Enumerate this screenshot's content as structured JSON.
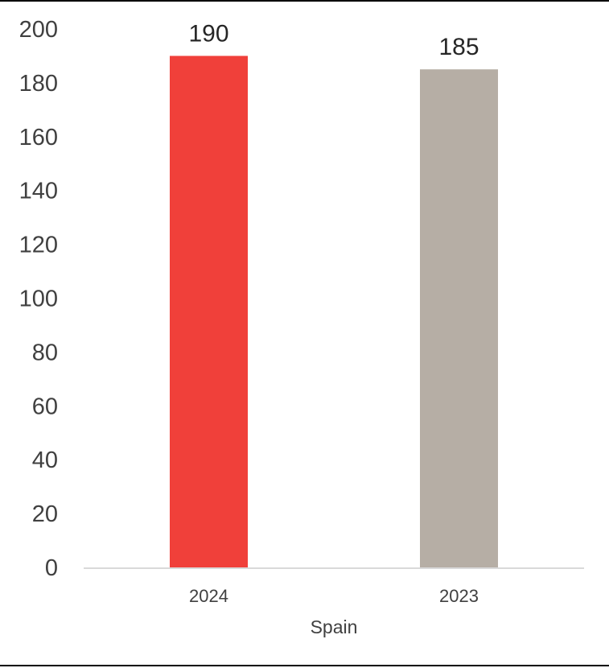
{
  "chart_data": {
    "type": "bar",
    "categories": [
      "2024",
      "2023"
    ],
    "values": [
      190,
      185
    ],
    "colors": [
      "#f0403a",
      "#b6aea5"
    ],
    "xlabel": "Spain",
    "ylabel": "",
    "ylim": [
      0,
      200
    ],
    "yticks": [
      0,
      20,
      40,
      60,
      80,
      100,
      120,
      140,
      160,
      180,
      200
    ],
    "data_labels": [
      "190",
      "185"
    ],
    "grid": false,
    "legend": "none"
  }
}
